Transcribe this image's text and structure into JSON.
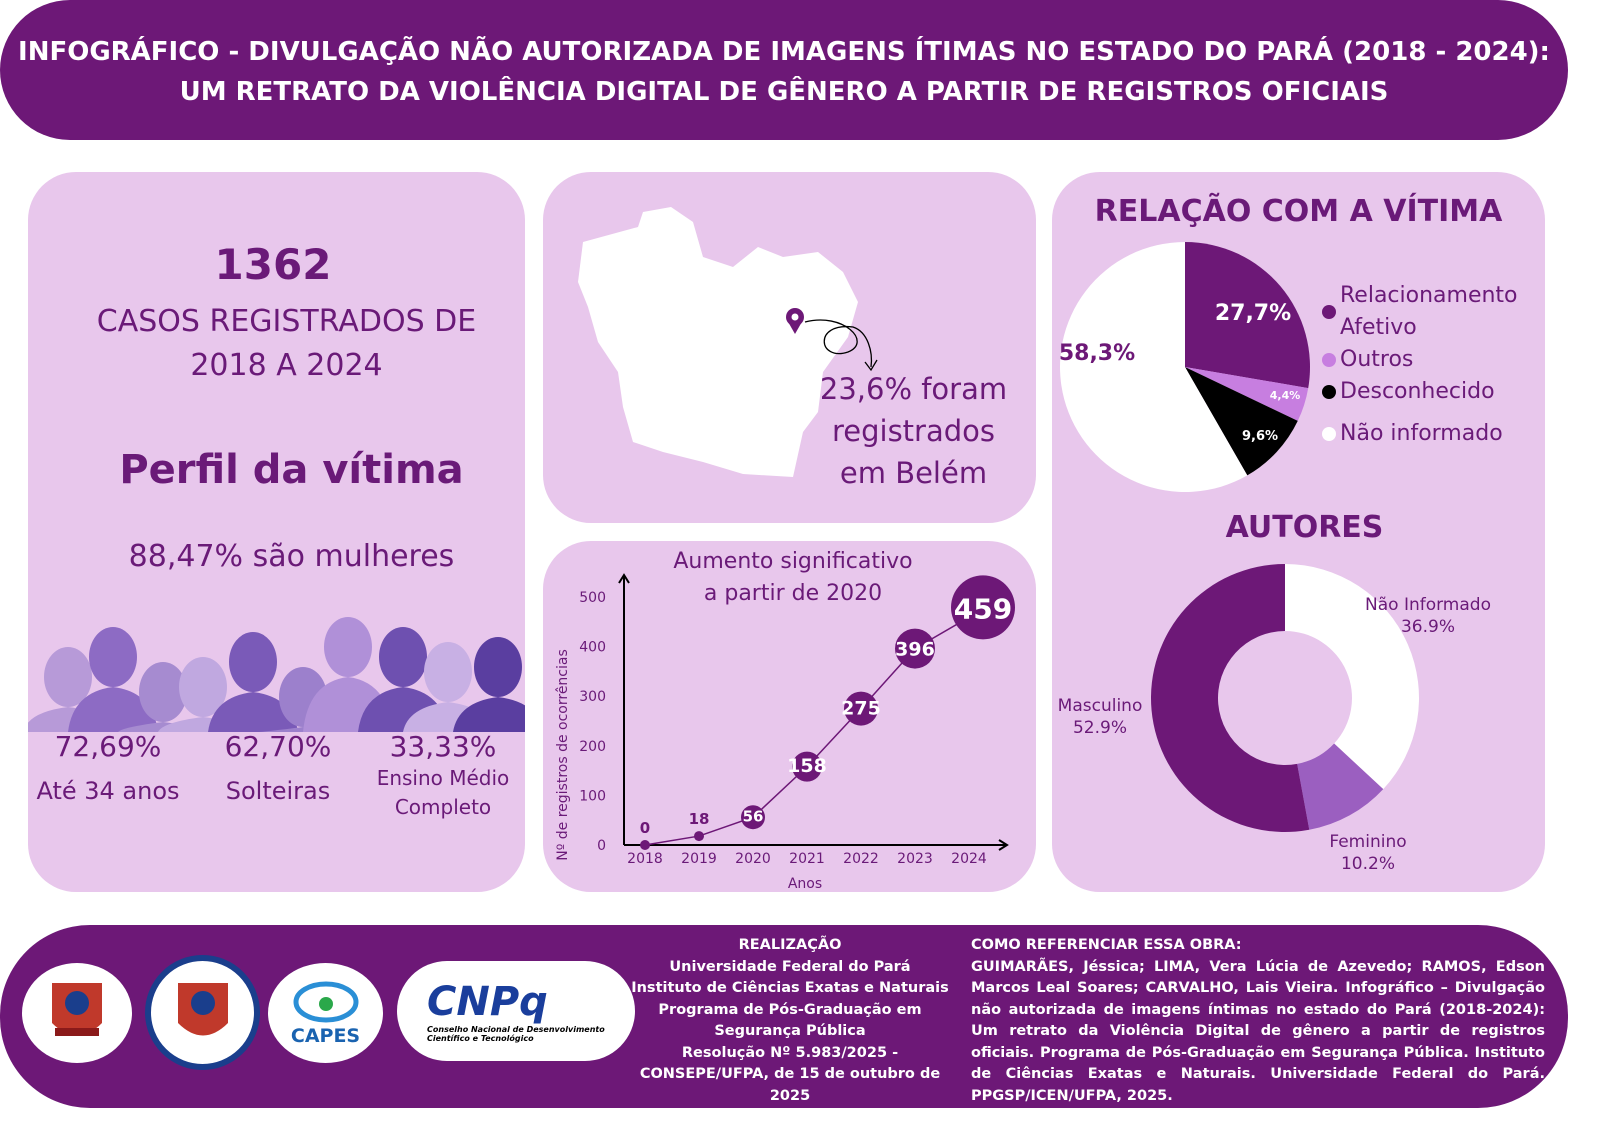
{
  "header": {
    "title_line1": "INFOGRÁFICO - DIVULGAÇÃO NÃO AUTORIZADA DE IMAGENS ÍTIMAS NO ESTADO DO PARÁ (2018 - 2024):",
    "title_line2": "UM RETRATO DA VIOLÊNCIA DIGITAL DE GÊNERO A PARTIR DE REGISTROS OFICIAIS"
  },
  "left": {
    "total": "1362",
    "total_caption_1": "CASOS REGISTRADOS DE",
    "total_caption_2": "2018 A 2024",
    "profile_title": "Perfil da vítima",
    "women": "88,47% são mulheres",
    "stats": [
      {
        "value": "72,69%",
        "label": "Até 34 anos"
      },
      {
        "value": "62,70%",
        "label": "Solteiras"
      },
      {
        "value": "33,33%",
        "label": "Ensino Médio Completo"
      }
    ]
  },
  "map": {
    "text_1": "23,6% foram",
    "text_2": "registrados",
    "text_3": "em Belém"
  },
  "colors": {
    "purple": "#6d1877",
    "panel": "#e8c7ec",
    "light_purple": "#c77ee0",
    "mid_purple": "#9b5fc0",
    "black": "#000000",
    "white": "#ffffff"
  },
  "chart_data": [
    {
      "type": "line",
      "title_1": "Aumento significativo",
      "title_2": "a partir de 2020",
      "xlabel": "Anos",
      "ylabel": "Nº de registros de ocorrências",
      "categories": [
        "2018",
        "2019",
        "2020",
        "2021",
        "2022",
        "2023",
        "2024"
      ],
      "values": [
        0,
        18,
        56,
        158,
        275,
        396,
        459
      ],
      "labels": [
        "0",
        "18",
        "56",
        "158",
        "275",
        "396",
        "459"
      ],
      "ylim": [
        0,
        500
      ],
      "yticks": [
        "0",
        "100",
        "200",
        "300",
        "400",
        "500"
      ],
      "grid": false
    },
    {
      "type": "pie",
      "title": "RELAÇÃO COM A VÍTIMA",
      "legend": "right",
      "slices": [
        {
          "name": "Relacionamento Afetivo",
          "value": 27.7,
          "label": "27,7%",
          "color": "#6d1877"
        },
        {
          "name": "Outros",
          "value": 4.4,
          "label": "4,4%",
          "color": "#c77ee0"
        },
        {
          "name": "Desconhecido",
          "value": 9.6,
          "label": "9,6%",
          "color": "#000000"
        },
        {
          "name": "Não informado",
          "value": 58.3,
          "label": "58,3%",
          "color": "#ffffff"
        }
      ]
    },
    {
      "type": "pie",
      "subtype": "donut",
      "title": "AUTORES",
      "slices": [
        {
          "name": "Não Informado",
          "value": 36.9,
          "label": "36.9%",
          "color": "#ffffff"
        },
        {
          "name": "Feminino",
          "value": 10.2,
          "label": "10.2%",
          "color": "#9b5fc0"
        },
        {
          "name": "Masculino",
          "value": 52.9,
          "label": "52.9%",
          "color": "#6d1877"
        }
      ]
    }
  ],
  "footer": {
    "realizacao_title": "REALIZAÇÃO",
    "realizacao_lines": [
      "Universidade Federal do Pará",
      "Instituto de Ciências Exatas e Naturais",
      "Programa de Pós-Graduação em",
      "Segurança Pública",
      "Resolução Nº 5.983/2025 -",
      "CONSEPE/UFPA, de 15 de outubro de 2025"
    ],
    "ref_title": "COMO REFERENCIAR ESSA OBRA:",
    "ref_text": "GUIMARÃES, Jéssica; LIMA, Vera Lúcia de Azevedo; RAMOS, Edson Marcos Leal Soares; CARVALHO, Lais Vieira. Infográfico – Divulgação não autorizada de imagens íntimas no estado do Pará (2018-2024): Um retrato da Violência Digital de gênero a partir de registros oficiais. Programa de Pós-Graduação em Segurança Pública. Instituto de Ciências Exatas e Naturais. Universidade Federal do Pará. PPGSP/ICEN/UFPA, 2025.",
    "logos": {
      "capes": "CAPES",
      "cnpq": "CNPq",
      "cnpq_sub_1": "Conselho Nacional de Desenvolvimento",
      "cnpq_sub_2": "Científico e Tecnológico"
    }
  }
}
